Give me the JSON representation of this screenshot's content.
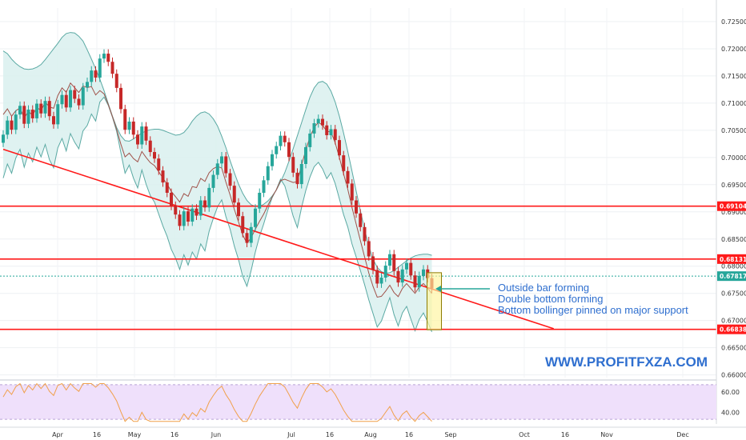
{
  "colors": {
    "up": "#26a69a",
    "down": "#c62828",
    "band_line": "#5aa9a3",
    "band_fill": "#d9f0ee",
    "mid_line": "#a0524a",
    "support": "#ff1a1a",
    "annot_text": "#2f6fcf",
    "current_price_tag": "#26a69a",
    "osc_fill": "#efe0fb",
    "osc_line": "#f0a04b"
  },
  "annotations": {
    "line1": "Outside bar forming",
    "line2": "Double bottom forming",
    "line3": "Bottom bollinger pinned on major support",
    "watermark": "WWW.PROFITFXZA.COM"
  },
  "price_tags": [
    {
      "label": "0.69104",
      "value": 0.69104,
      "color": "#ff1a1a"
    },
    {
      "label": "0.68131",
      "value": 0.68131,
      "color": "#ff1a1a"
    },
    {
      "label": "0.67817",
      "value": 0.67817,
      "color": "#26a69a"
    },
    {
      "label": "0.66838",
      "value": 0.66838,
      "color": "#ff1a1a"
    }
  ],
  "chart_data": {
    "type": "candlestick",
    "x_labels": [
      "Apr",
      "16",
      "May",
      "16",
      "Jun",
      "Jul",
      "16",
      "Aug",
      "16",
      "Sep",
      "Oct",
      "16",
      "Nov",
      "Dec"
    ],
    "y_ticks": [
      "0.72500",
      "0.72000",
      "0.71500",
      "0.71000",
      "0.70500",
      "0.70000",
      "0.69500",
      "0.69000",
      "0.68500",
      "0.68000",
      "0.67500",
      "0.67000",
      "0.66500",
      "0.66000"
    ],
    "ylim": [
      0.6595,
      0.7275
    ],
    "horizontal_levels": [
      0.69104,
      0.68131,
      0.66838
    ],
    "current_price": 0.67817,
    "trendline": {
      "start": [
        0,
        0.7015
      ],
      "end": [
        131,
        0.6685
      ]
    },
    "osc": {
      "ticks": [
        "60.00",
        "40.00"
      ],
      "range": [
        30,
        70
      ],
      "band": [
        33,
        67
      ]
    },
    "candles_close": [
      0.7042,
      0.7068,
      0.7051,
      0.7079,
      0.7095,
      0.7062,
      0.7088,
      0.7072,
      0.7099,
      0.7081,
      0.7104,
      0.7076,
      0.7061,
      0.7098,
      0.7115,
      0.7092,
      0.7124,
      0.7108,
      0.7096,
      0.7129,
      0.7139,
      0.716,
      0.7147,
      0.7182,
      0.7191,
      0.7176,
      0.7154,
      0.7128,
      0.7089,
      0.7051,
      0.7066,
      0.7042,
      0.7024,
      0.7057,
      0.7031,
      0.701,
      0.6998,
      0.6976,
      0.6954,
      0.6935,
      0.6911,
      0.6895,
      0.6874,
      0.6901,
      0.6882,
      0.6906,
      0.6893,
      0.6921,
      0.6908,
      0.6944,
      0.6968,
      0.6989,
      0.7002,
      0.6971,
      0.6948,
      0.6917,
      0.6892,
      0.6861,
      0.6843,
      0.6872,
      0.6906,
      0.6935,
      0.6958,
      0.6984,
      0.7006,
      0.7021,
      0.704,
      0.7028,
      0.7001,
      0.6972,
      0.6951,
      0.6988,
      0.7019,
      0.7044,
      0.7063,
      0.7071,
      0.7059,
      0.7041,
      0.7052,
      0.7032,
      0.7004,
      0.6975,
      0.6952,
      0.6921,
      0.6897,
      0.6872,
      0.6846,
      0.6818,
      0.6793,
      0.6768,
      0.6779,
      0.6801,
      0.6822,
      0.6791,
      0.677,
      0.6794,
      0.6806,
      0.6783,
      0.6761,
      0.6782,
      0.6794,
      0.6778,
      0.6759
    ],
    "bands_upper": [
      0.7196,
      0.7191,
      0.7181,
      0.7173,
      0.7167,
      0.7163,
      0.7162,
      0.7163,
      0.7166,
      0.7171,
      0.718,
      0.719,
      0.72,
      0.721,
      0.7221,
      0.7228,
      0.723,
      0.7229,
      0.7223,
      0.7214,
      0.7198,
      0.7181,
      0.7163,
      0.7144,
      0.7123,
      0.7099,
      0.7076,
      0.7055,
      0.704,
      0.7031,
      0.703,
      0.7034,
      0.704,
      0.7045,
      0.7049,
      0.7051,
      0.7052,
      0.7052,
      0.705,
      0.7047,
      0.7044,
      0.7041,
      0.7042,
      0.7046,
      0.7055,
      0.7067,
      0.7076,
      0.7082,
      0.7084,
      0.708,
      0.7071,
      0.7058,
      0.7039,
      0.7018,
      0.6994,
      0.6972,
      0.6951,
      0.6934,
      0.6921,
      0.6913,
      0.691,
      0.691,
      0.6914,
      0.692,
      0.6929,
      0.694,
      0.6955,
      0.6972,
      0.6993,
      0.7016,
      0.704,
      0.7064,
      0.7088,
      0.7111,
      0.7128,
      0.7138,
      0.714,
      0.7135,
      0.7122,
      0.7102,
      0.7076,
      0.7045,
      0.7011,
      0.6975,
      0.6938,
      0.6902,
      0.6868,
      0.6837,
      0.6813,
      0.6798,
      0.679,
      0.6787,
      0.6788,
      0.6792,
      0.6798,
      0.6804,
      0.681,
      0.6815,
      0.6819,
      0.6821,
      0.6822,
      0.6822,
      0.682
    ]
  }
}
